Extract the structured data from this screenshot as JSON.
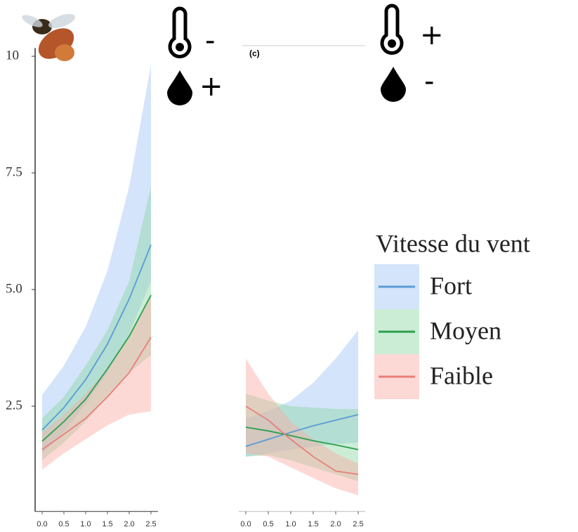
{
  "chart_data": [
    {
      "type": "line",
      "x": [
        0,
        0.5,
        1,
        1.5,
        2,
        2.5
      ],
      "xlim": [
        -0.1,
        2.6
      ],
      "xticks": [
        {
          "value": 0,
          "label": "0.0"
        },
        0.5,
        {
          "value": 1,
          "label": "1.0"
        },
        1.5,
        {
          "value": 2,
          "label": "2.0"
        },
        2.5
      ],
      "ylim": [
        0.2,
        10.1
      ],
      "yticks": [
        2.5,
        {
          "value": 5,
          "label": "5.0"
        },
        7.5,
        10
      ],
      "annotations": [
        "-",
        "+"
      ],
      "legend_title": "Vitesse du vent",
      "series": [
        {
          "name": "Fort",
          "color": "#5b9bd5",
          "band_color": "rgba(160,195,245,0.45)",
          "values": [
            1.99,
            2.47,
            3.07,
            3.83,
            4.8,
            5.96
          ],
          "upper": [
            2.74,
            3.37,
            4.2,
            5.4,
            7.21,
            9.82
          ],
          "lower": [
            1.49,
            1.94,
            2.55,
            3.22,
            4.05,
            5.18
          ]
        },
        {
          "name": "Moyen",
          "color": "#2ca04c",
          "band_color": "rgba(140,215,165,0.45)",
          "values": [
            1.75,
            2.17,
            2.65,
            3.3,
            4.0,
            4.88
          ],
          "upper": [
            2.24,
            2.7,
            3.37,
            4.13,
            5.18,
            7.21
          ],
          "lower": [
            1.34,
            1.72,
            2.17,
            2.7,
            3.22,
            3.6
          ]
        },
        {
          "name": "Faible",
          "color": "#e8807a",
          "band_color": "rgba(250,170,165,0.45)",
          "values": [
            1.57,
            1.9,
            2.24,
            2.7,
            3.22,
            3.98
          ],
          "upper": [
            1.94,
            2.32,
            2.77,
            3.3,
            3.98,
            4.88
          ],
          "lower": [
            1.14,
            1.49,
            1.79,
            2.09,
            2.32,
            2.39
          ]
        }
      ]
    },
    {
      "type": "line",
      "panel_label": "(c)",
      "x": [
        0,
        0.5,
        1,
        1.5,
        2,
        2.5
      ],
      "xlim": [
        -0.1,
        2.6
      ],
      "xticks": [
        {
          "value": 0,
          "label": "0.0"
        },
        0.5,
        {
          "value": 1,
          "label": "1.0"
        },
        1.5,
        {
          "value": 2,
          "label": "2.0"
        },
        2.5
      ],
      "ylim": [
        0.2,
        10.1
      ],
      "annotations": [
        "+",
        "-"
      ],
      "series": [
        {
          "color": "#5b9bd5",
          "band_color": "rgba(160,195,245,0.45)",
          "values": [
            1.64,
            1.79,
            1.94,
            2.08,
            2.2,
            2.32
          ],
          "upper": [
            2.24,
            2.39,
            2.62,
            3.0,
            3.52,
            4.13
          ],
          "lower": [
            1.42,
            1.49,
            1.57,
            1.64,
            1.69,
            1.72
          ]
        },
        {
          "color": "#2ca04c",
          "band_color": "rgba(140,215,165,0.45)",
          "values": [
            2.05,
            1.97,
            1.87,
            1.76,
            1.67,
            1.57
          ],
          "upper": [
            2.77,
            2.62,
            2.5,
            2.47,
            2.44,
            2.44
          ],
          "lower": [
            1.42,
            1.45,
            1.34,
            1.19,
            1.04,
            0.89
          ]
        },
        {
          "color": "#e8807a",
          "band_color": "rgba(250,170,165,0.45)",
          "values": [
            2.5,
            2.2,
            1.79,
            1.42,
            1.11,
            1.04
          ],
          "upper": [
            3.52,
            2.77,
            2.17,
            1.79,
            1.49,
            1.27
          ],
          "lower": [
            1.49,
            1.42,
            1.19,
            0.96,
            0.74,
            0.59
          ]
        }
      ]
    }
  ]
}
